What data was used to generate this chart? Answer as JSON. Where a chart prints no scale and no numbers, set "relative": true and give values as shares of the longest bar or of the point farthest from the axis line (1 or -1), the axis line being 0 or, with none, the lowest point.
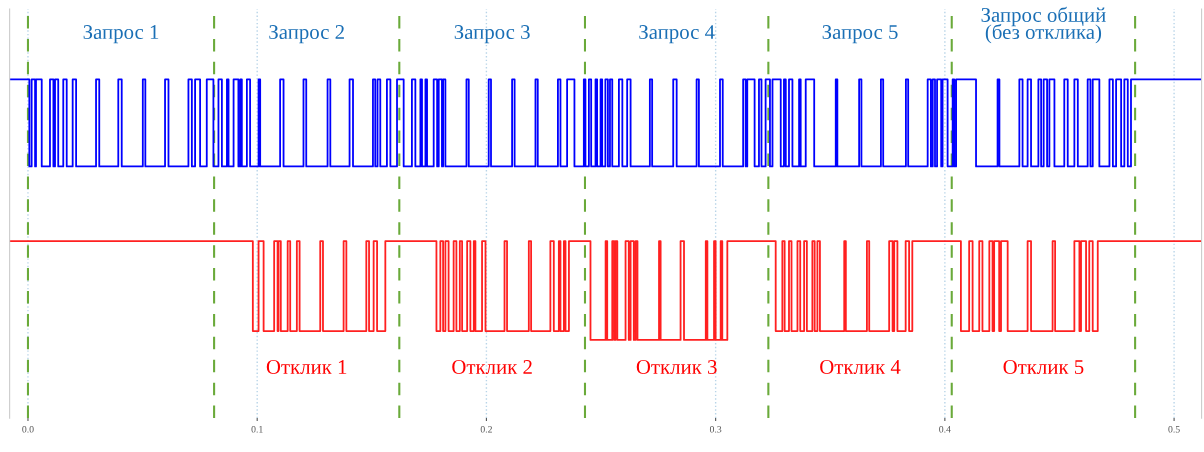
{
  "chart_data": {
    "type": "step",
    "relative": true,
    "grid": "x",
    "legend": false,
    "xlim": [
      -0.008,
      0.512
    ],
    "xticks": [
      {
        "value": 0,
        "label": "0.0"
      },
      {
        "value": 0.1,
        "label": "0.1"
      },
      {
        "value": 0.2,
        "label": "0.2"
      },
      {
        "value": 0.3,
        "label": "0.3"
      },
      {
        "value": 0.4,
        "label": "0.4"
      },
      {
        "value": 0.5,
        "label": "0.5"
      }
    ],
    "tick_labels": "x",
    "series": [
      {
        "color": "#0000ff",
        "x": [
          -0.008,
          0.0006,
          0.0016,
          0.0031,
          0.0035,
          0.006,
          0.0096,
          0.0111,
          0.0118,
          0.0132,
          0.0154,
          0.0169,
          0.0195,
          0.021,
          0.0297,
          0.0311,
          0.0394,
          0.0409,
          0.0501,
          0.0512,
          0.0598,
          0.0613,
          0.07,
          0.0715,
          0.0729,
          0.0751,
          0.078,
          0.0809,
          0.0831,
          0.0846,
          0.0868,
          0.0875,
          0.0897,
          0.0918,
          0.0926,
          0.0933,
          0.0955,
          0.0969,
          0.1006,
          0.1013,
          0.11,
          0.1115,
          0.1202,
          0.1214,
          0.1307,
          0.1319,
          0.1403,
          0.1418,
          0.1505,
          0.1515,
          0.1525,
          0.1537,
          0.1566,
          0.1581,
          0.161,
          0.1639,
          0.1675,
          0.169,
          0.1712,
          0.1719,
          0.1734,
          0.1741,
          0.177,
          0.1785,
          0.1792,
          0.1806,
          0.1811,
          0.1821,
          0.1913,
          0.1923,
          0.201,
          0.202,
          0.2112,
          0.2123,
          0.2214,
          0.2224,
          0.2312,
          0.2323,
          0.2352,
          0.2384,
          0.2425,
          0.2432,
          0.2447,
          0.2457,
          0.2476,
          0.2483,
          0.2498,
          0.2505,
          0.2519,
          0.253,
          0.2539,
          0.2549,
          0.2578,
          0.2593,
          0.2614,
          0.2629,
          0.2713,
          0.2723,
          0.2815,
          0.283,
          0.2917,
          0.2927,
          0.3019,
          0.3031,
          0.312,
          0.3131,
          0.3138,
          0.317,
          0.3189,
          0.32,
          0.3218,
          0.3237,
          0.3248,
          0.3284,
          0.3298,
          0.3306,
          0.332,
          0.3335,
          0.3364,
          0.3371,
          0.3393,
          0.343,
          0.3524,
          0.3531,
          0.3626,
          0.3636,
          0.3721,
          0.3731,
          0.383,
          0.384,
          0.3925,
          0.3939,
          0.3947,
          0.3957,
          0.3966,
          0.3984,
          0.399,
          0.4012,
          0.4034,
          0.4041,
          0.4049,
          0.4136,
          0.423,
          0.4238,
          0.4325,
          0.4339,
          0.4361,
          0.4376,
          0.4408,
          0.442,
          0.4431,
          0.4446,
          0.4456,
          0.4478,
          0.4521,
          0.4536,
          0.4565,
          0.458,
          0.4623,
          0.4635,
          0.4645,
          0.4674,
          0.4718,
          0.4733,
          0.4747,
          0.4769,
          0.4783,
          0.4798,
          0.4812,
          0.512
        ],
        "values": [
          1,
          0.666,
          1,
          0.666,
          1,
          0.666,
          1,
          0.666,
          1,
          0.666,
          1,
          0.666,
          1,
          0.666,
          1,
          0.666,
          1,
          0.666,
          1,
          0.666,
          1,
          0.666,
          1,
          0.666,
          1,
          0.666,
          1,
          0.666,
          1,
          0.666,
          1,
          0.666,
          1,
          0.666,
          1,
          0.666,
          1,
          0.666,
          1,
          0.666,
          1,
          0.666,
          1,
          0.666,
          1,
          0.666,
          1,
          0.666,
          1,
          0.666,
          1,
          0.666,
          1,
          0.666,
          1,
          0.666,
          1,
          0.666,
          1,
          0.666,
          1,
          0.666,
          1,
          0.666,
          1,
          0.666,
          1,
          0.666,
          1,
          0.666,
          1,
          0.666,
          1,
          0.666,
          1,
          0.666,
          1,
          0.666,
          1,
          0.666,
          1,
          0.666,
          1,
          0.666,
          1,
          0.666,
          1,
          0.666,
          1,
          0.666,
          1,
          0.666,
          1,
          0.666,
          1,
          0.666,
          1,
          0.666,
          1,
          0.666,
          1,
          0.666,
          1,
          0.666,
          1,
          0.666,
          1,
          0.666,
          1,
          0.666,
          1,
          0.666,
          1,
          0.666,
          1,
          0.666,
          1,
          0.666,
          1,
          0.666,
          1,
          0.666,
          1,
          0.666,
          1,
          0.666,
          1,
          0.666,
          1,
          0.666,
          1,
          0.666,
          1,
          0.666,
          1,
          0.666,
          1,
          0.666,
          1,
          0.666,
          1,
          0.666,
          1,
          0.666,
          1,
          0.666,
          1,
          0.666,
          1,
          0.666,
          1,
          0.666,
          1,
          0.666,
          1,
          0.666,
          1,
          0.666,
          1,
          0.666,
          1,
          0.666,
          1,
          0.666,
          1,
          0.666,
          1,
          0.666,
          1,
          1
        ]
      },
      {
        "color": "#ff2020",
        "x": [
          -0.008,
          0.0981,
          0.1006,
          0.1028,
          0.1074,
          0.1089,
          0.1093,
          0.1103,
          0.1133,
          0.1144,
          0.1173,
          0.1185,
          0.1275,
          0.1287,
          0.1377,
          0.1389,
          0.1476,
          0.1488,
          0.1508,
          0.1523,
          0.1559,
          0.1782,
          0.1799,
          0.1811,
          0.1821,
          0.1835,
          0.1857,
          0.1869,
          0.1884,
          0.1894,
          0.1916,
          0.193,
          0.1945,
          0.1952,
          0.1981,
          0.1996,
          0.2079,
          0.209,
          0.2185,
          0.2195,
          0.2279,
          0.2294,
          0.2316,
          0.2323,
          0.2338,
          0.2345,
          0.236,
          0.2454,
          0.252,
          0.2527,
          0.2549,
          0.2557,
          0.2563,
          0.2571,
          0.2607,
          0.2621,
          0.2629,
          0.2643,
          0.2651,
          0.2659,
          0.2753,
          0.276,
          0.2847,
          0.2862,
          0.2957,
          0.2964,
          0.2993,
          0.3,
          0.3022,
          0.3029,
          0.3051,
          0.3262,
          0.3291,
          0.3301,
          0.332,
          0.3331,
          0.3357,
          0.3369,
          0.3386,
          0.3398,
          0.3422,
          0.3432,
          0.3444,
          0.3455,
          0.3561,
          0.3568,
          0.366,
          0.367,
          0.3757,
          0.3772,
          0.3779,
          0.3793,
          0.3829,
          0.3844,
          0.3858,
          0.407,
          0.4106,
          0.4121,
          0.415,
          0.4164,
          0.4194,
          0.4208,
          0.4215,
          0.4237,
          0.4245,
          0.4274,
          0.4361,
          0.4376,
          0.447,
          0.4481,
          0.4565,
          0.4587,
          0.4594,
          0.4616,
          0.463,
          0.4645,
          0.4667,
          0.512
        ],
        "values": [
          0.379,
          0.034,
          0.379,
          0.034,
          0.379,
          0.034,
          0.379,
          0.034,
          0.379,
          0.034,
          0.379,
          0.034,
          0.379,
          0.034,
          0.379,
          0.034,
          0.379,
          0.034,
          0.379,
          0.034,
          0.379,
          0.034,
          0.379,
          0.034,
          0.379,
          0.034,
          0.379,
          0.034,
          0.379,
          0.034,
          0.379,
          0.034,
          0.379,
          0.034,
          0.379,
          0.034,
          0.379,
          0.034,
          0.379,
          0.034,
          0.379,
          0.034,
          0.379,
          0.034,
          0.379,
          0.034,
          0.379,
          0,
          0.379,
          0,
          0.379,
          0,
          0.379,
          0,
          0.379,
          0,
          0.379,
          0,
          0.379,
          0,
          0.379,
          0,
          0.379,
          0,
          0.379,
          0,
          0.379,
          0,
          0.379,
          0,
          0.379,
          0.034,
          0.379,
          0.034,
          0.379,
          0.034,
          0.379,
          0.034,
          0.379,
          0.034,
          0.379,
          0.034,
          0.379,
          0.034,
          0.379,
          0.034,
          0.379,
          0.034,
          0.379,
          0.034,
          0.379,
          0.034,
          0.379,
          0.034,
          0.379,
          0.034,
          0.379,
          0.034,
          0.379,
          0.034,
          0.379,
          0.034,
          0.379,
          0.034,
          0.379,
          0.034,
          0.379,
          0.034,
          0.379,
          0.034,
          0.379,
          0.034,
          0.379,
          0.034,
          0.379,
          0.034,
          0.379,
          0.379
        ]
      }
    ],
    "ref_lines": [
      {
        "axis": "x",
        "value": 0.0,
        "color": "#6aaa3a",
        "line_style": "dashed"
      },
      {
        "axis": "x",
        "value": 0.0812,
        "color": "#6aaa3a",
        "line_style": "dashed"
      },
      {
        "axis": "x",
        "value": 0.162,
        "color": "#6aaa3a",
        "line_style": "dashed"
      },
      {
        "axis": "x",
        "value": 0.243,
        "color": "#6aaa3a",
        "line_style": "dashed"
      },
      {
        "axis": "x",
        "value": 0.323,
        "color": "#6aaa3a",
        "line_style": "dashed"
      },
      {
        "axis": "x",
        "value": 0.403,
        "color": "#6aaa3a",
        "line_style": "dashed"
      },
      {
        "axis": "x",
        "value": 0.483,
        "color": "#6aaa3a",
        "line_style": "dashed"
      }
    ],
    "annotations": [
      "Запрос 1",
      "Запрос 2",
      "Запрос 3",
      "Запрос 4",
      "Запрос 5",
      "Запрос общий\n(без отклика)",
      "Отклик 1",
      "Отклик 2",
      "Отклик 3",
      "Отклик 4",
      "Отклик 5"
    ]
  }
}
